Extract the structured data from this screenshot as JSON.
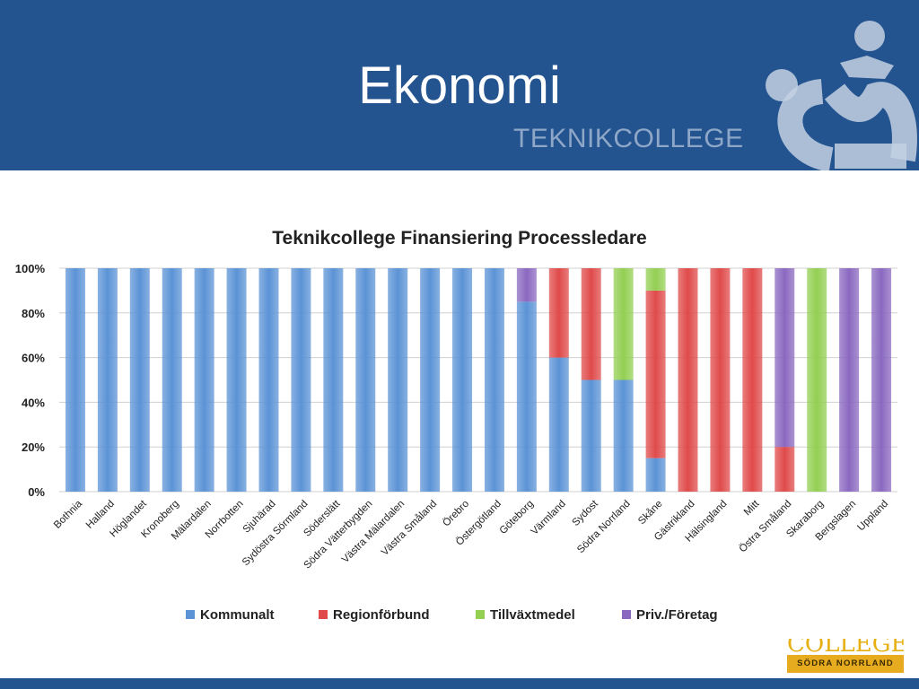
{
  "slide": {
    "title": "Ekonomi",
    "brand_text": "TEKNIKCOLLEGE",
    "bottom_logo_text": "COLLEGE",
    "bottom_logo_subtext": "SÖDRA NORRLAND"
  },
  "colors": {
    "header_bg": "#24548f",
    "kommunalt": "#5b93d6",
    "regionforbund": "#e04a4a",
    "tillvaxtmedel": "#93cf52",
    "priv_foretag": "#8a68c0"
  },
  "chart_data": {
    "type": "bar",
    "stacked": true,
    "title": "Teknikcollege Finansiering Processledare",
    "xlabel": "",
    "ylabel": "",
    "ylim": [
      0,
      100
    ],
    "y_tick_labels": [
      "0%",
      "20%",
      "40%",
      "60%",
      "80%",
      "100%"
    ],
    "grid": true,
    "legend_position": "bottom",
    "categories": [
      "Bothnia",
      "Halland",
      "Höglandet",
      "Kronoberg",
      "Mälardalen",
      "Norrbotten",
      "Sjuhärad",
      "Sydöstra Sörmland",
      "Söderslätt",
      "Södra Vätterbygden",
      "Västra Mälardalen",
      "Västra Småland",
      "Örebro",
      "Östergötland",
      "Göteborg",
      "Värmland",
      "Sydost",
      "Södra Norrland",
      "Skåne",
      "Gästrikland",
      "Hälsingland",
      "Mitt",
      "Östra Småland",
      "Skaraborg",
      "Bergslagen",
      "Uppland"
    ],
    "series": [
      {
        "name": "Kommunalt",
        "color": "#5b93d6",
        "values": [
          100,
          100,
          100,
          100,
          100,
          100,
          100,
          100,
          100,
          100,
          100,
          100,
          100,
          100,
          85,
          60,
          50,
          50,
          15,
          0,
          0,
          0,
          0,
          0,
          0,
          0
        ]
      },
      {
        "name": "Regionförbund",
        "color": "#e04a4a",
        "values": [
          0,
          0,
          0,
          0,
          0,
          0,
          0,
          0,
          0,
          0,
          0,
          0,
          0,
          0,
          0,
          40,
          50,
          0,
          75,
          100,
          100,
          100,
          20,
          0,
          0,
          0
        ]
      },
      {
        "name": "Tillväxtmedel",
        "color": "#93cf52",
        "values": [
          0,
          0,
          0,
          0,
          0,
          0,
          0,
          0,
          0,
          0,
          0,
          0,
          0,
          0,
          0,
          0,
          0,
          50,
          10,
          0,
          0,
          0,
          0,
          100,
          0,
          0
        ]
      },
      {
        "name": "Priv./Företag",
        "color": "#8a68c0",
        "values": [
          0,
          0,
          0,
          0,
          0,
          0,
          0,
          0,
          0,
          0,
          0,
          0,
          0,
          0,
          15,
          0,
          0,
          0,
          0,
          0,
          0,
          0,
          80,
          0,
          100,
          100
        ]
      }
    ]
  }
}
